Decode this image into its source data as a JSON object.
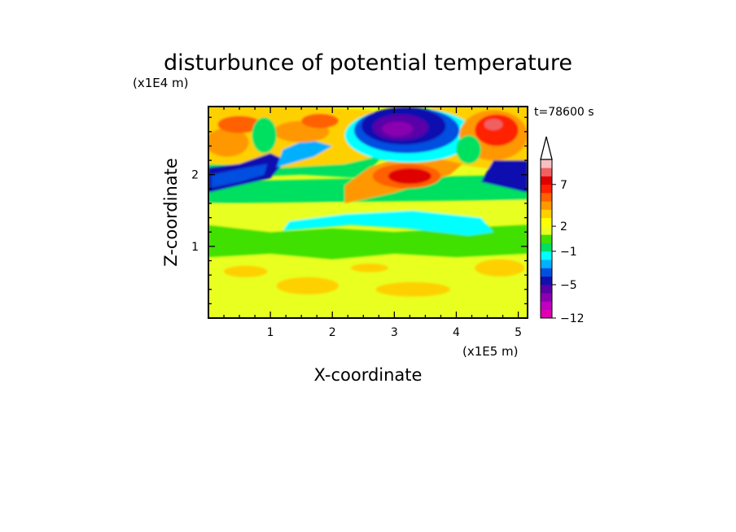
{
  "chart_data": {
    "type": "heatmap",
    "title": "disturbunce of potential temperature",
    "xlabel": "X-coordinate",
    "ylabel": "Z-coordinate",
    "x_units": "(x1E5 m)",
    "y_units": "(x1E4 m)",
    "time_label": "t=78600 s",
    "xlim": [
      0,
      5.15
    ],
    "ylim": [
      0,
      2.95
    ],
    "x_ticks": [
      "1",
      "2",
      "3",
      "4",
      "5"
    ],
    "y_ticks": [
      "1",
      "2"
    ],
    "x_tick_values": [
      1,
      2,
      3,
      4,
      5
    ],
    "y_tick_values": [
      1,
      2
    ],
    "colorbar": {
      "levels": [
        -12,
        -10,
        -8,
        -6,
        -5,
        -4,
        -3,
        -2,
        -1,
        0,
        1,
        2,
        3,
        4,
        5,
        6,
        7,
        8,
        10,
        12
      ],
      "labels": [
        "-12",
        "-5",
        "-1",
        "2",
        "7"
      ],
      "label_values": [
        -12,
        -5,
        -1,
        2,
        7
      ],
      "colors": [
        "#e000b0",
        "#c000c0",
        "#8a00b0",
        "#5a00a8",
        "#1010b0",
        "#0050e0",
        "#00b0ff",
        "#00ffff",
        "#00e060",
        "#40e000",
        "#e8ff20",
        "#ffff00",
        "#ffd000",
        "#ff9800",
        "#ff6000",
        "#ff2000",
        "#e00000",
        "#f06060",
        "#f8c0c0"
      ],
      "extend": "max"
    },
    "features": [
      {
        "description_value": "negative anomaly",
        "x": 3.2,
        "z": 2.6,
        "value": -8
      },
      {
        "description_value": "negative band",
        "x": 0.5,
        "z": 1.95,
        "value": -5
      },
      {
        "description_value": "positive anomaly",
        "x": 3.3,
        "z": 1.95,
        "value": 7
      },
      {
        "description_value": "positive anomaly",
        "x": 4.7,
        "z": 2.6,
        "value": 6
      }
    ]
  }
}
